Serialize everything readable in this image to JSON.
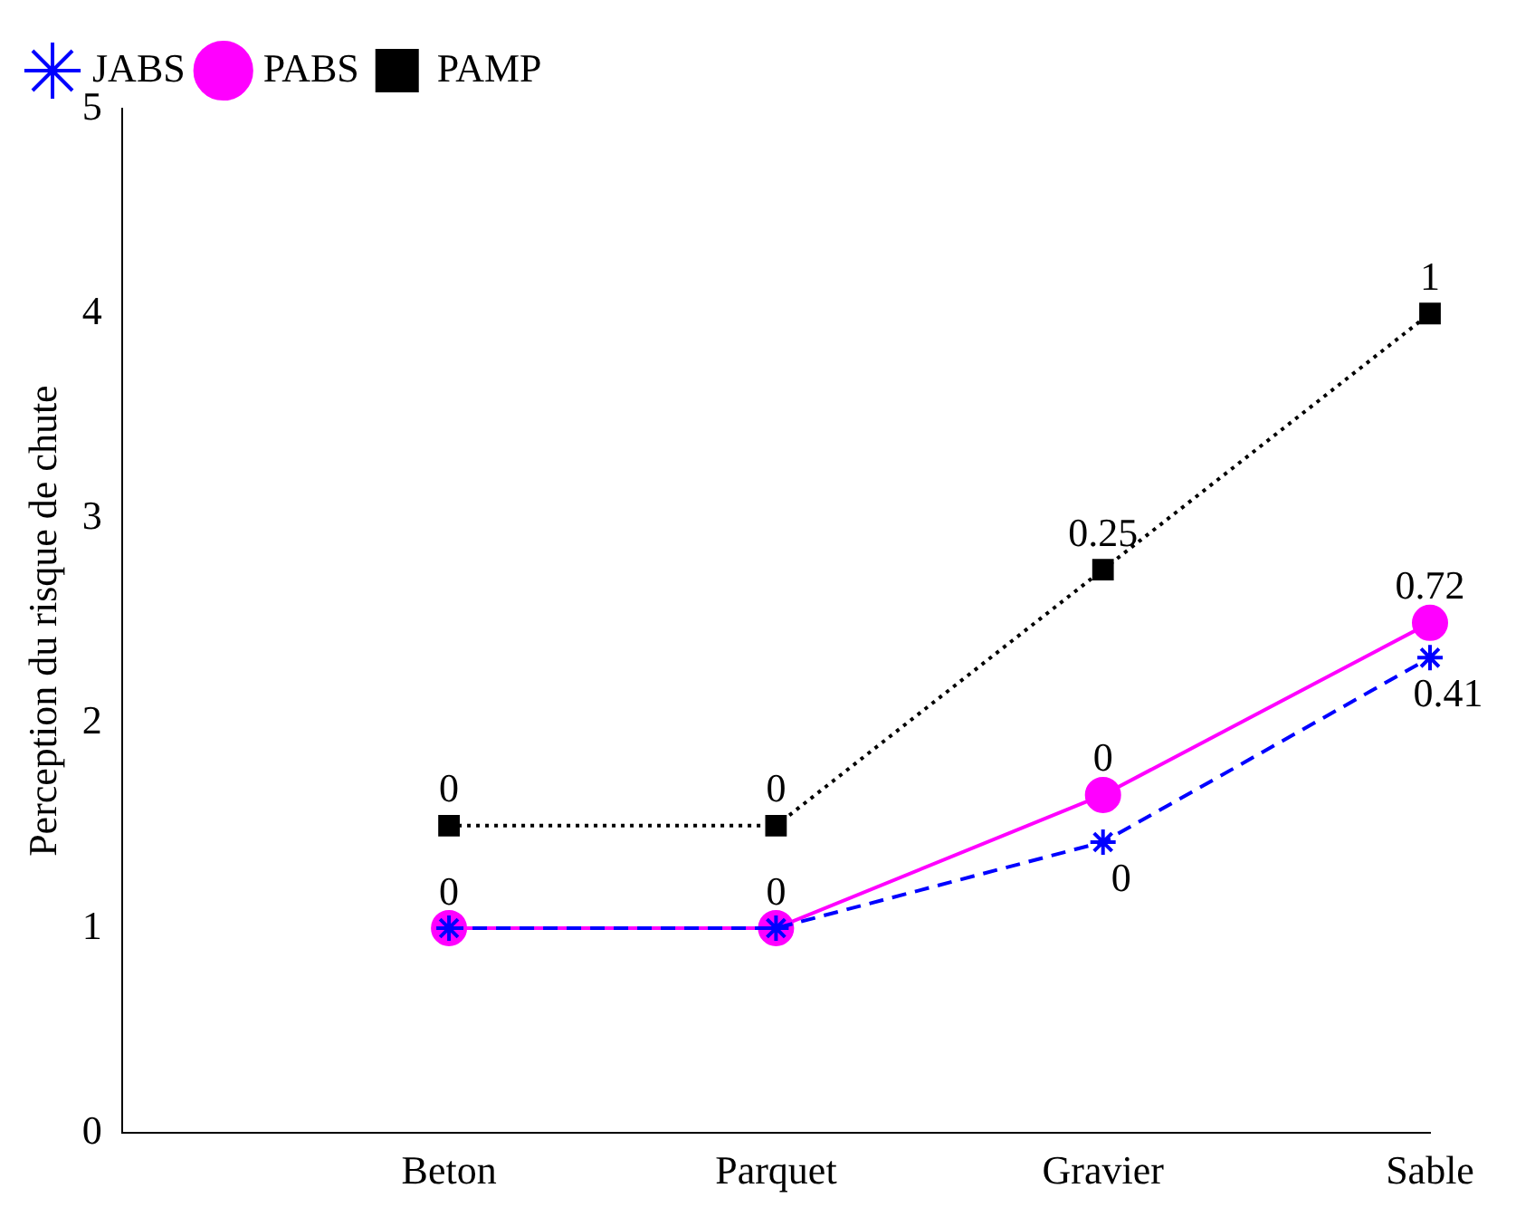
{
  "chart_data": {
    "type": "line",
    "ylabel": "Perception du risque de chute",
    "categories": [
      null,
      "Beton",
      "Parquet",
      "Gravier",
      "Sable"
    ],
    "series": [
      {
        "name": "JABS",
        "color": "#0000ff",
        "marker": "cross",
        "line_style": "dashed",
        "values": [
          null,
          1,
          1,
          1.42,
          2.32
        ]
      },
      {
        "name": "PABS",
        "color": "#ff00ff",
        "marker": "circle",
        "line_style": "solid",
        "values": [
          null,
          1,
          1,
          1.65,
          2.49
        ]
      },
      {
        "name": "PAMP",
        "color": "#000000",
        "marker": "square",
        "line_style": "dotted",
        "values": [
          null,
          1.5,
          1.5,
          2.75,
          4
        ]
      }
    ],
    "ylim": [
      0,
      5
    ],
    "yticks": [
      0,
      1,
      2,
      3,
      4,
      5
    ],
    "grid": false,
    "legend": "top left",
    "annotations": [
      {
        "text": "0",
        "x": "Beton",
        "y": 1.5
      },
      {
        "text": "0",
        "x": "Parquet",
        "y": 1.5
      },
      {
        "text": "0.25",
        "x": "Gravier",
        "y": 2.75
      },
      {
        "text": "1",
        "x": "Sable",
        "y": 4
      },
      {
        "text": "0",
        "x": "Beton",
        "y": 1
      },
      {
        "text": "0",
        "x": "Parquet",
        "y": 1
      },
      {
        "text": "0",
        "x": "Gravier",
        "y": 1.65
      },
      {
        "text": "0.72",
        "x": "Sable",
        "y": 2.49
      },
      {
        "text": "0",
        "x": "Gravier",
        "y": 1.42
      },
      {
        "text": "0.41",
        "x": "Sable",
        "y": 2.32
      }
    ]
  }
}
